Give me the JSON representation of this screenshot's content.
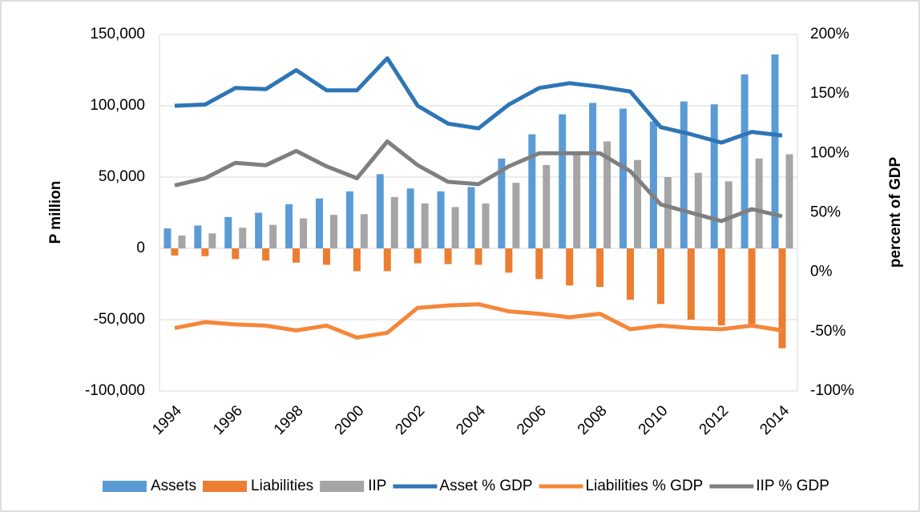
{
  "chart_data": {
    "type": "bar-line-combo",
    "y_label": "P million",
    "y2_label": "percent of GDP",
    "categories": [
      "1994",
      null,
      "1996",
      null,
      "1998",
      null,
      "2000",
      null,
      "2002",
      null,
      "2004",
      null,
      "2006",
      null,
      "2008",
      null,
      "2010",
      null,
      "2012",
      null,
      "2014"
    ],
    "series": [
      {
        "name": "Assets",
        "kind": "bar",
        "color": "#5b9bd5",
        "values": [
          14000,
          16000,
          22000,
          25000,
          31000,
          35000,
          40000,
          52000,
          42000,
          40000,
          43000,
          63000,
          80000,
          94000,
          102000,
          98000,
          89000,
          103000,
          101000,
          122000,
          136000
        ]
      },
      {
        "name": "Liabilities",
        "kind": "bar",
        "color": "#ed7d31",
        "values": [
          -5000,
          -5500,
          -7500,
          -8500,
          -10000,
          -11500,
          -16000,
          -16000,
          -10500,
          -11000,
          -11500,
          -17000,
          -21500,
          -26000,
          -27000,
          -36000,
          -39000,
          -50000,
          -54000,
          -53000,
          -70000
        ]
      },
      {
        "name": "IIP",
        "kind": "bar",
        "color": "#a5a5a5",
        "values": [
          9000,
          10500,
          14500,
          16500,
          21000,
          23500,
          24000,
          36000,
          31500,
          29000,
          31500,
          46000,
          58500,
          68000,
          75000,
          62000,
          50000,
          53000,
          47000,
          63000,
          66000
        ]
      },
      {
        "name": "Asset % GDP",
        "kind": "line",
        "axis": "y2",
        "color": "#2e75b6",
        "values": [
          140,
          141,
          155,
          154,
          170,
          153,
          153,
          180,
          140,
          125,
          121,
          141,
          155,
          159,
          156,
          152,
          122,
          116,
          109,
          118,
          115
        ]
      },
      {
        "name": "Liabilities % GDP",
        "kind": "line",
        "axis": "y2",
        "color": "#f4873a",
        "values": [
          -47,
          -42,
          -44,
          -45,
          -49,
          -45,
          -55,
          -51,
          -30,
          -28,
          -27,
          -33,
          -35,
          -38,
          -35,
          -48,
          -45,
          -47,
          -48,
          -45,
          -49
        ]
      },
      {
        "name": "IIP % GDP",
        "kind": "line",
        "axis": "y2",
        "color": "#7f7f7f",
        "values": [
          73,
          79,
          92,
          90,
          102,
          89,
          79,
          110,
          90,
          76,
          74,
          89,
          100,
          100,
          100,
          85,
          57,
          50,
          43,
          53,
          47
        ]
      }
    ],
    "ylim": [
      -100000,
      150000
    ],
    "yticks": [
      {
        "value": -100000,
        "label": "-100,000"
      },
      {
        "value": -50000,
        "label": "-50,000"
      },
      0,
      {
        "value": 50000,
        "label": "50,000"
      },
      {
        "value": 100000,
        "label": "100,000"
      },
      {
        "value": 150000,
        "label": "150,000"
      }
    ],
    "y2lim": [
      -100,
      200
    ],
    "y2ticks": [
      {
        "value": -100,
        "label": "-100%"
      },
      {
        "value": -50,
        "label": "-50%"
      },
      {
        "value": 0,
        "label": "0%"
      },
      {
        "value": 50,
        "label": "50%"
      },
      {
        "value": 100,
        "label": "100%"
      },
      {
        "value": 150,
        "label": "150%"
      },
      {
        "value": 200,
        "label": "200%"
      }
    ],
    "grid": true,
    "legend": "bottom"
  }
}
